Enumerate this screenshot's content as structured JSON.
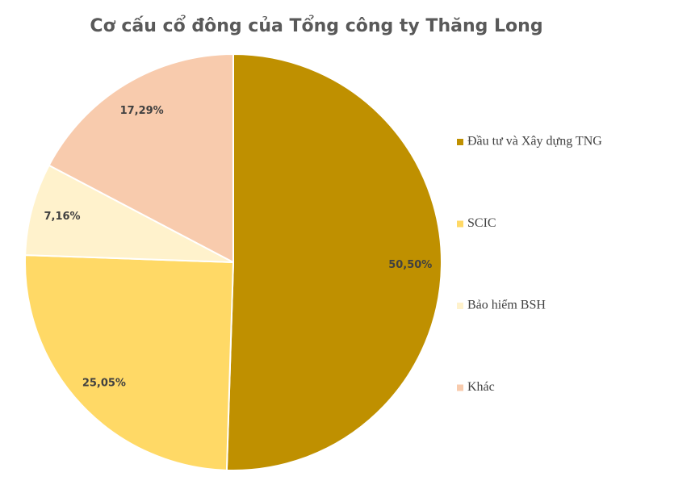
{
  "chart_data": {
    "type": "pie",
    "title": "Cơ cấu cổ đông của Tổng công ty Thăng Long",
    "categories": [
      "Đầu tư và Xây dựng TNG",
      "SCIC",
      "Bảo hiểm BSH",
      "Khác"
    ],
    "values": [
      50.5,
      25.05,
      7.16,
      17.29
    ],
    "value_labels": [
      "50,50%",
      "25,05%",
      "7,16%",
      "17,29%"
    ],
    "colors": [
      "#BF9000",
      "#FFD966",
      "#FFF2CC",
      "#F8CBAD"
    ],
    "legend": "right"
  }
}
